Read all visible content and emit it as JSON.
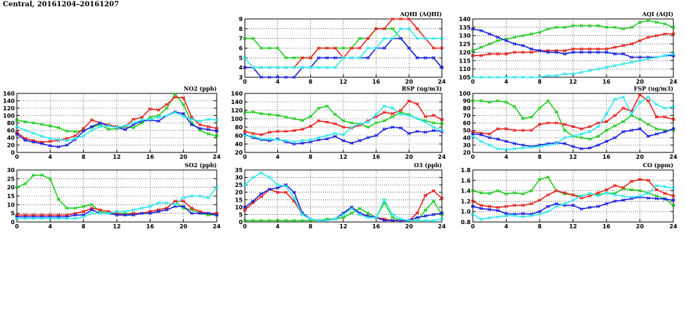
{
  "page_title": "Central, 20161204–20161207",
  "colors": {
    "green": "#22cc22",
    "red": "#e8231c",
    "blue": "#1c22e0",
    "cyan": "#33e8ee"
  },
  "chart_data": [
    {
      "id": "aqhi",
      "type": "line",
      "title": "AQHI (AQHI)",
      "xlim": [
        0,
        24
      ],
      "xticks": [
        0,
        4,
        8,
        12,
        16,
        20,
        24
      ],
      "ylim": [
        3,
        9
      ],
      "yticks": [
        3,
        4,
        5,
        6,
        7,
        8,
        9
      ],
      "grid": true,
      "series": [
        {
          "color": "green",
          "values": [
            7,
            7,
            6,
            6,
            6,
            5,
            5,
            5,
            5,
            6,
            6,
            6,
            6,
            6,
            7,
            7,
            8,
            8,
            8,
            7,
            6,
            5,
            5,
            5,
            4
          ]
        },
        {
          "color": "red",
          "values": [
            4,
            4,
            4,
            4,
            4,
            4,
            4,
            5,
            5,
            6,
            6,
            6,
            5,
            6,
            6,
            7,
            8,
            8,
            9,
            9,
            9,
            8,
            7,
            6,
            6
          ]
        },
        {
          "color": "blue",
          "values": [
            4,
            4,
            3,
            3,
            3,
            3,
            3,
            4,
            4,
            5,
            5,
            5,
            5,
            5,
            5,
            5,
            6,
            6,
            7,
            7,
            6,
            5,
            5,
            5,
            4
          ]
        },
        {
          "color": "cyan",
          "values": [
            5,
            4,
            4,
            4,
            4,
            4,
            4,
            4,
            4,
            4,
            4,
            4,
            5,
            5,
            5,
            6,
            6,
            7,
            7,
            8,
            8,
            7,
            7,
            7,
            7
          ]
        }
      ]
    },
    {
      "id": "aqi",
      "type": "line",
      "title": "AQI (AQI)",
      "xlim": [
        0,
        24
      ],
      "xticks": [
        0,
        4,
        8,
        12,
        16,
        20,
        24
      ],
      "ylim": [
        105,
        140
      ],
      "yticks": [
        105,
        110,
        115,
        120,
        125,
        130,
        135,
        140
      ],
      "grid": true,
      "series": [
        {
          "color": "green",
          "values": [
            121,
            123,
            125,
            127,
            128,
            129,
            130,
            131,
            132,
            134,
            135,
            135,
            136,
            136,
            136,
            136,
            135,
            135,
            134,
            135,
            138,
            139,
            138,
            137,
            135
          ]
        },
        {
          "color": "red",
          "values": [
            118,
            118,
            119,
            119,
            119,
            120,
            120,
            120,
            121,
            121,
            121,
            121,
            122,
            122,
            122,
            122,
            122,
            123,
            124,
            125,
            127,
            129,
            130,
            131,
            131
          ]
        },
        {
          "color": "blue",
          "values": [
            134,
            133,
            131,
            129,
            127,
            125,
            124,
            122,
            121,
            120,
            120,
            119,
            120,
            120,
            120,
            120,
            120,
            119,
            119,
            117,
            117,
            117,
            117,
            118,
            118
          ]
        },
        {
          "color": "cyan",
          "values": [
            105,
            105,
            105,
            105,
            105,
            105,
            105,
            105,
            105,
            106,
            106,
            107,
            107,
            108,
            109,
            110,
            111,
            112,
            113,
            114,
            115,
            116,
            117,
            118,
            119
          ]
        }
      ]
    },
    {
      "id": "no2",
      "type": "line",
      "title": "NO2 (ppb)",
      "xlim": [
        0,
        24
      ],
      "xticks": [
        0,
        4,
        8,
        12,
        16,
        20,
        24
      ],
      "ylim": [
        0,
        160
      ],
      "yticks": [
        0,
        20,
        40,
        60,
        80,
        100,
        120,
        140,
        160
      ],
      "grid": true,
      "series": [
        {
          "color": "green",
          "values": [
            88,
            83,
            80,
            76,
            72,
            67,
            58,
            56,
            60,
            68,
            75,
            63,
            65,
            70,
            67,
            80,
            95,
            100,
            120,
            158,
            130,
            80,
            60,
            50,
            45
          ]
        },
        {
          "color": "red",
          "values": [
            55,
            38,
            32,
            28,
            30,
            33,
            38,
            45,
            65,
            88,
            80,
            75,
            70,
            70,
            90,
            95,
            118,
            115,
            130,
            150,
            148,
            95,
            75,
            70,
            65
          ]
        },
        {
          "color": "blue",
          "values": [
            50,
            33,
            28,
            24,
            18,
            15,
            20,
            35,
            58,
            70,
            80,
            72,
            68,
            62,
            75,
            85,
            88,
            85,
            100,
            110,
            105,
            75,
            65,
            62,
            58
          ]
        },
        {
          "color": "cyan",
          "values": [
            70,
            60,
            52,
            44,
            38,
            35,
            32,
            38,
            45,
            60,
            70,
            72,
            68,
            72,
            80,
            88,
            90,
            95,
            100,
            108,
            98,
            90,
            85,
            90,
            88
          ]
        }
      ]
    },
    {
      "id": "rsp",
      "type": "line",
      "title": "RSP (ug/m3)",
      "xlim": [
        0,
        24
      ],
      "xticks": [
        0,
        4,
        8,
        12,
        16,
        20,
        24
      ],
      "ylim": [
        20,
        160
      ],
      "yticks": [
        20,
        40,
        60,
        80,
        100,
        120,
        140,
        160
      ],
      "grid": true,
      "series": [
        {
          "color": "green",
          "values": [
            115,
            116,
            112,
            110,
            108,
            104,
            100,
            96,
            105,
            125,
            130,
            110,
            95,
            90,
            88,
            80,
            90,
            95,
            105,
            115,
            110,
            100,
            95,
            90,
            88
          ]
        },
        {
          "color": "red",
          "values": [
            70,
            65,
            62,
            68,
            70,
            70,
            72,
            75,
            82,
            95,
            92,
            88,
            80,
            78,
            85,
            95,
            105,
            115,
            112,
            120,
            142,
            135,
            105,
            108,
            98
          ]
        },
        {
          "color": "blue",
          "values": [
            62,
            55,
            50,
            48,
            52,
            45,
            40,
            42,
            45,
            50,
            52,
            58,
            48,
            42,
            48,
            55,
            60,
            75,
            80,
            78,
            65,
            70,
            68,
            72,
            70
          ]
        },
        {
          "color": "cyan",
          "values": [
            60,
            58,
            52,
            52,
            50,
            48,
            45,
            48,
            50,
            55,
            60,
            65,
            62,
            80,
            88,
            92,
            110,
            130,
            125,
            110,
            108,
            100,
            92,
            80,
            72
          ]
        }
      ]
    },
    {
      "id": "fsp",
      "type": "line",
      "title": "FSP (ug/m3)",
      "xlim": [
        0,
        24
      ],
      "xticks": [
        0,
        4,
        8,
        12,
        16,
        20,
        24
      ],
      "ylim": [
        20,
        100
      ],
      "yticks": [
        20,
        30,
        40,
        50,
        60,
        70,
        80,
        90,
        100
      ],
      "grid": true,
      "series": [
        {
          "color": "green",
          "values": [
            90,
            90,
            88,
            90,
            88,
            82,
            66,
            68,
            80,
            90,
            75,
            50,
            42,
            40,
            38,
            42,
            50,
            56,
            62,
            70,
            65,
            58,
            52,
            50,
            50
          ]
        },
        {
          "color": "red",
          "values": [
            48,
            46,
            45,
            52,
            52,
            50,
            50,
            50,
            58,
            60,
            60,
            58,
            55,
            52,
            55,
            60,
            62,
            70,
            80,
            76,
            98,
            90,
            68,
            68,
            65
          ]
        },
        {
          "color": "blue",
          "values": [
            45,
            44,
            40,
            38,
            35,
            32,
            30,
            28,
            30,
            32,
            33,
            32,
            28,
            25,
            26,
            30,
            35,
            40,
            48,
            50,
            52,
            42,
            45,
            48,
            52
          ]
        },
        {
          "color": "cyan",
          "values": [
            42,
            35,
            30,
            25,
            24,
            25,
            26,
            27,
            28,
            30,
            32,
            40,
            42,
            45,
            48,
            55,
            72,
            92,
            95,
            72,
            88,
            95,
            85,
            80,
            82
          ]
        }
      ]
    },
    {
      "id": "so2",
      "type": "line",
      "title": "SO2 (ppb)",
      "xlim": [
        0,
        24
      ],
      "xticks": [
        0,
        4,
        8,
        12,
        16,
        20,
        24
      ],
      "ylim": [
        0,
        30
      ],
      "yticks": [
        0,
        5,
        10,
        15,
        20,
        25,
        30
      ],
      "grid": true,
      "series": [
        {
          "color": "green",
          "values": [
            20,
            22,
            27,
            27,
            25,
            13,
            8,
            8,
            9,
            10,
            6,
            5,
            5,
            5,
            5,
            5,
            6,
            7,
            8,
            12,
            8,
            7,
            5,
            4,
            4
          ]
        },
        {
          "color": "red",
          "values": [
            4,
            4,
            4,
            4,
            4,
            4,
            4,
            5,
            6,
            8,
            7,
            6,
            5,
            4,
            5,
            5,
            6,
            7,
            8,
            12,
            12,
            8,
            6,
            5,
            5
          ]
        },
        {
          "color": "blue",
          "values": [
            3,
            3,
            3,
            3,
            3,
            3,
            3,
            4,
            4,
            7,
            5,
            5,
            4,
            4,
            4,
            5,
            5,
            6,
            7,
            9,
            9,
            5,
            5,
            5,
            4
          ]
        },
        {
          "color": "cyan",
          "values": [
            2,
            2,
            2,
            2,
            2,
            2,
            2,
            2,
            3,
            5,
            5,
            5,
            6,
            6,
            7,
            8,
            9,
            11,
            11,
            10,
            14,
            15,
            15,
            14,
            20
          ]
        }
      ]
    },
    {
      "id": "o3",
      "type": "line",
      "title": "O3 (ppb)",
      "xlim": [
        0,
        24
      ],
      "xticks": [
        0,
        4,
        8,
        12,
        16,
        20,
        24
      ],
      "ylim": [
        0,
        35
      ],
      "yticks": [
        0,
        5,
        10,
        15,
        20,
        25,
        30,
        35
      ],
      "grid": true,
      "series": [
        {
          "color": "green",
          "values": [
            1,
            1,
            1,
            1,
            1,
            1,
            1,
            1,
            1,
            1,
            2,
            2,
            3,
            6,
            9,
            6,
            3,
            13,
            3,
            1,
            1,
            1,
            8,
            14,
            5
          ]
        },
        {
          "color": "red",
          "values": [
            8,
            13,
            17,
            22,
            20,
            20,
            14,
            5,
            2,
            1,
            1,
            2,
            5,
            10,
            5,
            4,
            3,
            2,
            1,
            1,
            1,
            6,
            18,
            21,
            16
          ]
        },
        {
          "color": "blue",
          "values": [
            10,
            14,
            19,
            22,
            23,
            25,
            20,
            6,
            2,
            1,
            1,
            2,
            6,
            10,
            6,
            4,
            3,
            1,
            1,
            1,
            1,
            3,
            4,
            5,
            6
          ]
        },
        {
          "color": "cyan",
          "values": [
            25,
            30,
            33,
            30,
            25,
            24,
            16,
            5,
            2,
            1,
            1,
            2,
            5,
            9,
            5,
            3,
            3,
            15,
            5,
            2,
            1,
            1,
            1,
            1,
            2
          ]
        }
      ]
    },
    {
      "id": "co",
      "type": "line",
      "title": "CO (ppm)",
      "xlim": [
        0,
        24
      ],
      "xticks": [
        0,
        4,
        8,
        12,
        16,
        20,
        24
      ],
      "ylim": [
        0.8,
        1.8
      ],
      "yticks": [
        0.8,
        1.0,
        1.2,
        1.4,
        1.6,
        1.8
      ],
      "grid": true,
      "series": [
        {
          "color": "green",
          "values": [
            1.4,
            1.36,
            1.35,
            1.4,
            1.34,
            1.36,
            1.34,
            1.4,
            1.62,
            1.66,
            1.4,
            1.34,
            1.32,
            1.3,
            1.34,
            1.32,
            1.36,
            1.35,
            1.44,
            1.42,
            1.4,
            1.36,
            1.3,
            1.25,
            1.12
          ]
        },
        {
          "color": "red",
          "values": [
            1.2,
            1.12,
            1.1,
            1.08,
            1.1,
            1.12,
            1.12,
            1.15,
            1.22,
            1.32,
            1.4,
            1.36,
            1.32,
            1.26,
            1.3,
            1.36,
            1.42,
            1.5,
            1.46,
            1.58,
            1.62,
            1.6,
            1.42,
            1.35,
            1.3
          ]
        },
        {
          "color": "blue",
          "values": [
            1.1,
            1.06,
            1.04,
            1.02,
            0.96,
            0.95,
            0.96,
            0.95,
            1.0,
            1.1,
            1.15,
            1.12,
            1.12,
            1.05,
            1.08,
            1.1,
            1.15,
            1.2,
            1.22,
            1.25,
            1.28,
            1.26,
            1.25,
            1.24,
            1.22
          ]
        },
        {
          "color": "cyan",
          "values": [
            0.95,
            0.85,
            0.88,
            0.9,
            0.92,
            0.92,
            0.9,
            0.92,
            0.95,
            1.0,
            1.1,
            1.15,
            1.22,
            1.3,
            1.35,
            1.3,
            1.36,
            1.32,
            1.3,
            1.28,
            1.3,
            1.35,
            1.5,
            1.48,
            1.45
          ]
        }
      ]
    }
  ]
}
